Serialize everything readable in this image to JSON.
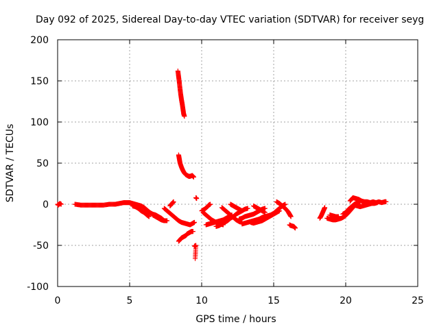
{
  "chart_data": {
    "type": "scatter",
    "title": "Day 092 of 2025, Sidereal Day-to-day VTEC variation (SDTVAR) for receiver seyg",
    "xlabel": "GPS time / hours",
    "ylabel": "SDTVAR / TECUs",
    "xlim": [
      0,
      25
    ],
    "ylim": [
      -100,
      200
    ],
    "xticks": [
      0,
      5,
      10,
      15,
      20,
      25
    ],
    "yticks": [
      -100,
      -50,
      0,
      50,
      100,
      150,
      200
    ],
    "grid": true,
    "marker": "+",
    "marker_color": "#ff0000",
    "series": [
      {
        "name": "SDTVAR",
        "segments": [
          [
            [
              0.0,
              0
            ],
            [
              0.05,
              -1
            ],
            [
              0.15,
              1
            ],
            [
              0.25,
              0
            ]
          ],
          [
            [
              1.2,
              0
            ],
            [
              1.6,
              -1
            ],
            [
              2.0,
              -1
            ],
            [
              2.4,
              -1
            ],
            [
              2.8,
              -1
            ],
            [
              3.2,
              -1
            ],
            [
              3.6,
              0
            ],
            [
              4.0,
              0
            ],
            [
              4.3,
              1
            ],
            [
              4.6,
              2
            ],
            [
              4.8,
              2
            ],
            [
              5.0,
              2
            ],
            [
              5.2,
              1
            ],
            [
              5.4,
              0
            ],
            [
              5.6,
              -1
            ],
            [
              5.8,
              -2
            ],
            [
              6.0,
              -4
            ],
            [
              6.2,
              -7
            ],
            [
              6.4,
              -10
            ],
            [
              6.6,
              -12
            ],
            [
              6.8,
              -13
            ],
            [
              7.0,
              -15
            ],
            [
              7.2,
              -17
            ],
            [
              7.4,
              -20
            ]
          ],
          [
            [
              5.2,
              -2
            ],
            [
              5.4,
              -3
            ],
            [
              5.6,
              -5
            ],
            [
              5.8,
              -8
            ],
            [
              6.0,
              -10
            ],
            [
              6.2,
              -13
            ],
            [
              6.35,
              -15
            ]
          ],
          [
            [
              6.6,
              -13
            ],
            [
              6.8,
              -15
            ],
            [
              7.0,
              -17
            ],
            [
              7.2,
              -19
            ],
            [
              7.4,
              -20
            ],
            [
              7.6,
              -20
            ]
          ],
          [
            [
              7.4,
              -5
            ],
            [
              7.6,
              -8
            ],
            [
              7.8,
              -11
            ],
            [
              8.0,
              -14
            ],
            [
              8.2,
              -17
            ],
            [
              8.4,
              -20
            ],
            [
              8.6,
              -22
            ],
            [
              8.8,
              -23
            ],
            [
              9.0,
              -24
            ],
            [
              9.2,
              -25
            ],
            [
              9.4,
              -23
            ],
            [
              9.5,
              -22
            ]
          ],
          [
            [
              7.8,
              -2
            ],
            [
              7.9,
              0
            ],
            [
              8.0,
              2
            ],
            [
              8.05,
              3
            ]
          ],
          [
            [
              8.35,
              162
            ],
            [
              8.4,
              155
            ],
            [
              8.45,
              148
            ],
            [
              8.5,
              140
            ],
            [
              8.55,
              133
            ],
            [
              8.6,
              127
            ],
            [
              8.65,
              122
            ],
            [
              8.7,
              116
            ],
            [
              8.75,
              110
            ],
            [
              8.8,
              107
            ]
          ],
          [
            [
              8.4,
              60
            ],
            [
              8.45,
              55
            ],
            [
              8.5,
              50
            ],
            [
              8.6,
              45
            ],
            [
              8.7,
              41
            ],
            [
              8.8,
              38
            ],
            [
              8.9,
              36
            ],
            [
              9.0,
              35
            ],
            [
              9.1,
              34
            ],
            [
              9.2,
              34
            ],
            [
              9.35,
              35
            ],
            [
              9.45,
              33
            ]
          ],
          [
            [
              8.4,
              -45
            ],
            [
              8.5,
              -43
            ],
            [
              8.6,
              -41
            ],
            [
              8.7,
              -40
            ],
            [
              8.8,
              -39
            ],
            [
              8.9,
              -38
            ],
            [
              9.0,
              -36
            ],
            [
              9.1,
              -35
            ],
            [
              9.2,
              -34
            ],
            [
              9.3,
              -33
            ],
            [
              9.4,
              -33
            ]
          ],
          [
            [
              9.5,
              -51
            ],
            [
              9.6,
              -50
            ],
            [
              9.55,
              -66
            ]
          ],
          [
            [
              9.6,
              8
            ],
            [
              9.65,
              7
            ]
          ],
          [
            [
              10.1,
              -10
            ],
            [
              10.3,
              -13
            ],
            [
              10.5,
              -16
            ],
            [
              10.7,
              -19
            ],
            [
              10.9,
              -21
            ],
            [
              11.1,
              -23
            ],
            [
              11.3,
              -24
            ],
            [
              11.5,
              -25
            ]
          ],
          [
            [
              10.3,
              -25
            ],
            [
              10.5,
              -24
            ],
            [
              10.7,
              -23
            ],
            [
              10.9,
              -22
            ],
            [
              11.1,
              -21
            ],
            [
              11.3,
              -20
            ],
            [
              11.5,
              -19
            ],
            [
              11.7,
              -17
            ],
            [
              11.9,
              -15
            ],
            [
              12.1,
              -13
            ]
          ],
          [
            [
              10.0,
              -8
            ],
            [
              10.2,
              -6
            ],
            [
              10.4,
              -3
            ],
            [
              10.5,
              -1
            ],
            [
              10.6,
              0
            ]
          ],
          [
            [
              11.0,
              -27
            ],
            [
              11.2,
              -26
            ],
            [
              11.4,
              -24
            ],
            [
              11.6,
              -22
            ],
            [
              11.8,
              -20
            ],
            [
              12.0,
              -17
            ],
            [
              12.2,
              -15
            ],
            [
              12.4,
              -12
            ],
            [
              12.6,
              -10
            ],
            [
              12.8,
              -8
            ],
            [
              13.0,
              -6
            ],
            [
              13.2,
              -5
            ]
          ],
          [
            [
              11.4,
              -4
            ],
            [
              11.6,
              -7
            ],
            [
              11.8,
              -10
            ],
            [
              12.0,
              -13
            ],
            [
              12.2,
              -16
            ],
            [
              12.4,
              -19
            ],
            [
              12.6,
              -21
            ],
            [
              12.8,
              -22
            ]
          ],
          [
            [
              12.6,
              -18
            ],
            [
              12.8,
              -17
            ],
            [
              13.0,
              -15
            ],
            [
              13.2,
              -14
            ],
            [
              13.4,
              -13
            ],
            [
              13.6,
              -12
            ],
            [
              13.8,
              -10
            ],
            [
              14.0,
              -8
            ],
            [
              14.2,
              -6
            ],
            [
              14.4,
              -5
            ]
          ],
          [
            [
              12.8,
              -24
            ],
            [
              13.0,
              -23
            ],
            [
              13.2,
              -22
            ],
            [
              13.4,
              -21
            ],
            [
              13.6,
              -20
            ],
            [
              13.8,
              -19
            ],
            [
              14.0,
              -18
            ],
            [
              14.2,
              -16
            ],
            [
              14.4,
              -15
            ],
            [
              14.6,
              -14
            ],
            [
              14.8,
              -13
            ],
            [
              15.0,
              -11
            ],
            [
              15.2,
              -8
            ],
            [
              15.4,
              -5
            ],
            [
              15.6,
              -2
            ],
            [
              15.8,
              0
            ]
          ],
          [
            [
              13.4,
              -22
            ],
            [
              13.6,
              -23
            ],
            [
              13.8,
              -22
            ],
            [
              14.0,
              -21
            ],
            [
              14.2,
              -20
            ],
            [
              14.4,
              -18
            ],
            [
              14.6,
              -16
            ],
            [
              14.8,
              -14
            ],
            [
              15.0,
              -12
            ],
            [
              15.2,
              -10
            ],
            [
              15.4,
              -8
            ]
          ],
          [
            [
              12.0,
              0
            ],
            [
              12.2,
              -2
            ],
            [
              12.4,
              -4
            ],
            [
              12.6,
              -6
            ],
            [
              12.8,
              -8
            ]
          ],
          [
            [
              13.6,
              -2
            ],
            [
              13.8,
              -4
            ],
            [
              14.0,
              -6
            ],
            [
              14.2,
              -8
            ],
            [
              14.4,
              -10
            ]
          ],
          [
            [
              15.2,
              3
            ],
            [
              15.4,
              1
            ],
            [
              15.6,
              -2
            ],
            [
              15.8,
              -5
            ],
            [
              16.0,
              -9
            ],
            [
              16.1,
              -12
            ],
            [
              16.2,
              -15
            ]
          ],
          [
            [
              16.1,
              -25
            ],
            [
              16.2,
              -26
            ],
            [
              16.4,
              -27
            ],
            [
              16.5,
              -29
            ]
          ],
          [
            [
              18.2,
              -17
            ],
            [
              18.3,
              -14
            ],
            [
              18.4,
              -10
            ],
            [
              18.5,
              -6
            ],
            [
              18.55,
              -4
            ]
          ],
          [
            [
              18.7,
              -17
            ],
            [
              18.9,
              -18
            ],
            [
              19.1,
              -19
            ],
            [
              19.3,
              -19
            ],
            [
              19.5,
              -18
            ],
            [
              19.7,
              -17
            ],
            [
              19.9,
              -15
            ],
            [
              20.1,
              -12
            ],
            [
              20.3,
              -8
            ],
            [
              20.5,
              -4
            ]
          ],
          [
            [
              18.9,
              -13
            ],
            [
              19.1,
              -14
            ],
            [
              19.3,
              -15
            ],
            [
              19.5,
              -15
            ]
          ],
          [
            [
              19.8,
              -12
            ],
            [
              20.0,
              -10
            ],
            [
              20.2,
              -6
            ],
            [
              20.4,
              -3
            ],
            [
              20.6,
              0
            ],
            [
              20.8,
              2
            ],
            [
              21.0,
              3
            ]
          ],
          [
            [
              20.3,
              4
            ],
            [
              20.5,
              8
            ],
            [
              20.7,
              7
            ],
            [
              20.9,
              6
            ],
            [
              21.1,
              4
            ],
            [
              21.3,
              3
            ],
            [
              21.5,
              3
            ],
            [
              21.7,
              2
            ],
            [
              21.9,
              3
            ],
            [
              22.1,
              2
            ],
            [
              22.3,
              3
            ],
            [
              22.5,
              2
            ],
            [
              22.7,
              3
            ],
            [
              22.8,
              3
            ]
          ],
          [
            [
              20.6,
              -1
            ],
            [
              20.8,
              -2
            ],
            [
              21.0,
              -3
            ],
            [
              21.2,
              -2
            ],
            [
              21.4,
              -1
            ],
            [
              21.6,
              0
            ],
            [
              21.8,
              1
            ],
            [
              22.0,
              1
            ],
            [
              22.2,
              2
            ]
          ]
        ]
      }
    ]
  }
}
